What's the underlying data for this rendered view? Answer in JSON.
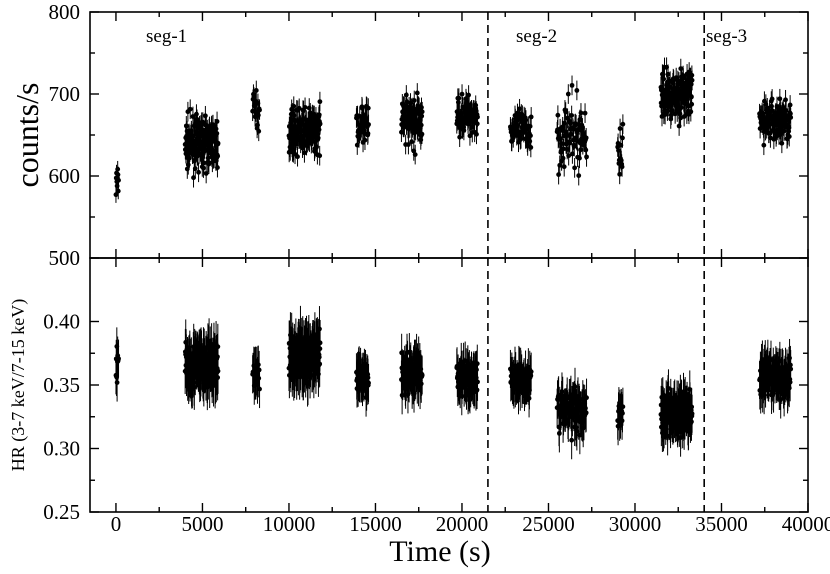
{
  "chart_data": [
    {
      "type": "scatter",
      "panel": "top",
      "ylabel": "counts/s",
      "xlim": [
        -1500,
        40000
      ],
      "ylim": [
        500,
        800
      ],
      "yticks": [
        500,
        600,
        700,
        800
      ],
      "segment_boundaries_x": [
        21500,
        34000
      ],
      "segment_labels": [
        "seg-1",
        "seg-2",
        "seg-3"
      ],
      "clusters": [
        {
          "x": [
            0,
            150
          ],
          "y": [
            590,
            18
          ],
          "n": 10,
          "err": 10
        },
        {
          "x": [
            4000,
            5900
          ],
          "y": [
            640,
            20
          ],
          "n": 170,
          "err": 12
        },
        {
          "x": [
            7900,
            8300
          ],
          "y": [
            680,
            16
          ],
          "n": 18,
          "err": 12
        },
        {
          "x": [
            10000,
            11800
          ],
          "y": [
            655,
            18
          ],
          "n": 150,
          "err": 12
        },
        {
          "x": [
            13900,
            14600
          ],
          "y": [
            665,
            17
          ],
          "n": 45,
          "err": 12
        },
        {
          "x": [
            16500,
            17700
          ],
          "y": [
            665,
            22
          ],
          "n": 90,
          "err": 12
        },
        {
          "x": [
            19700,
            20900
          ],
          "y": [
            675,
            16
          ],
          "n": 80,
          "err": 12
        },
        {
          "x": [
            22800,
            24000
          ],
          "y": [
            655,
            17
          ],
          "n": 60,
          "err": 12
        },
        {
          "x": [
            25500,
            27200
          ],
          "y": [
            650,
            30
          ],
          "n": 80,
          "err": 12
        },
        {
          "x": [
            29000,
            29300
          ],
          "y": [
            630,
            25
          ],
          "n": 14,
          "err": 12
        },
        {
          "x": [
            31500,
            33300
          ],
          "y": [
            700,
            20
          ],
          "n": 150,
          "err": 12
        },
        {
          "x": [
            37200,
            39000
          ],
          "y": [
            668,
            18
          ],
          "n": 110,
          "err": 12
        }
      ]
    },
    {
      "type": "scatter",
      "panel": "bottom",
      "title": "",
      "xlabel": "Time (s)",
      "ylabel": "HR (3-7 keV/7-15 keV)",
      "xlim": [
        -1500,
        40000
      ],
      "ylim": [
        0.25,
        0.45
      ],
      "yticks": [
        0.25,
        0.3,
        0.35,
        0.4
      ],
      "xticks": [
        0,
        5000,
        10000,
        15000,
        20000,
        25000,
        30000,
        35000,
        40000
      ],
      "segment_boundaries_x": [
        21500,
        34000
      ],
      "clusters": [
        {
          "x": [
            0,
            150
          ],
          "y": [
            0.365,
            0.012
          ],
          "n": 10,
          "err": 0.015
        },
        {
          "x": [
            4000,
            5900
          ],
          "y": [
            0.365,
            0.012
          ],
          "n": 170,
          "err": 0.018
        },
        {
          "x": [
            7900,
            8300
          ],
          "y": [
            0.36,
            0.01
          ],
          "n": 18,
          "err": 0.015
        },
        {
          "x": [
            10000,
            11800
          ],
          "y": [
            0.372,
            0.012
          ],
          "n": 150,
          "err": 0.018
        },
        {
          "x": [
            13900,
            14600
          ],
          "y": [
            0.355,
            0.01
          ],
          "n": 45,
          "err": 0.015
        },
        {
          "x": [
            16500,
            17700
          ],
          "y": [
            0.36,
            0.011
          ],
          "n": 90,
          "err": 0.015
        },
        {
          "x": [
            19700,
            20900
          ],
          "y": [
            0.355,
            0.01
          ],
          "n": 80,
          "err": 0.015
        },
        {
          "x": [
            22800,
            24000
          ],
          "y": [
            0.355,
            0.009
          ],
          "n": 60,
          "err": 0.015
        },
        {
          "x": [
            25500,
            27200
          ],
          "y": [
            0.33,
            0.012
          ],
          "n": 80,
          "err": 0.015
        },
        {
          "x": [
            29000,
            29300
          ],
          "y": [
            0.33,
            0.01
          ],
          "n": 14,
          "err": 0.015
        },
        {
          "x": [
            31500,
            33300
          ],
          "y": [
            0.328,
            0.012
          ],
          "n": 150,
          "err": 0.015
        },
        {
          "x": [
            37200,
            39000
          ],
          "y": [
            0.355,
            0.01
          ],
          "n": 110,
          "err": 0.015
        }
      ]
    }
  ]
}
